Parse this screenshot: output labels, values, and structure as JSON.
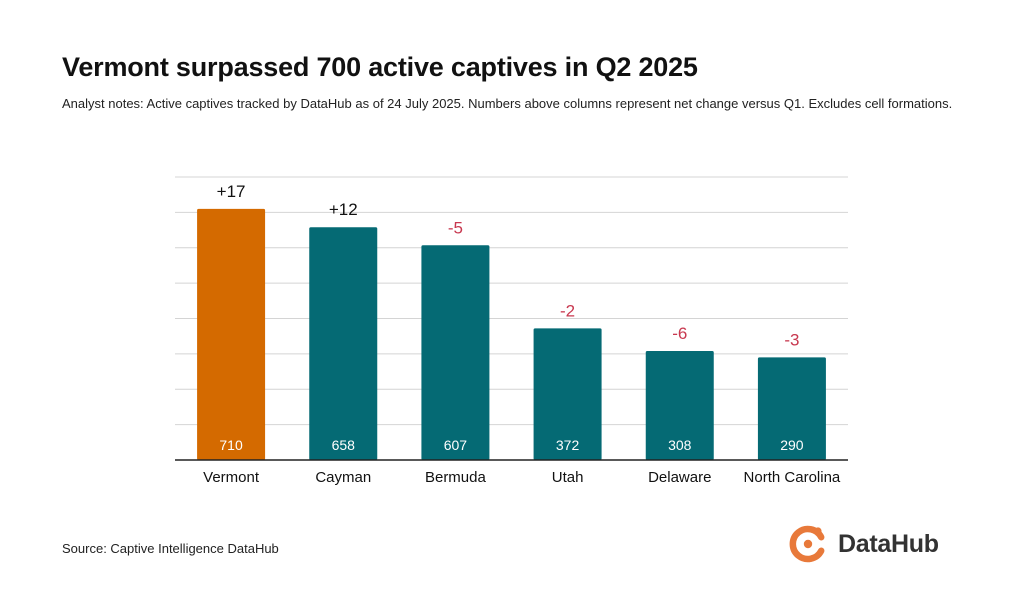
{
  "header": {
    "title": "Vermont surpassed 700 active captives in Q2 2025",
    "subtitle": "Analyst notes: Active captives tracked by DataHub as of 24 July 2025. Numbers above columns represent net change versus Q1. Excludes cell formations."
  },
  "footer": {
    "source": "Source: Captive Intelligence DataHub",
    "brand": "DataHub"
  },
  "colors": {
    "highlight_bar": "#d46a00",
    "bar": "#056a74",
    "positive_change": "#111111",
    "negative_change": "#c8384f",
    "value_label": "#ffffff",
    "gridline": "#d4d4d4",
    "axis": "#222222",
    "logo": "#e8793a"
  },
  "chart_data": {
    "type": "bar",
    "categories": [
      "Vermont",
      "Cayman",
      "Bermuda",
      "Utah",
      "Delaware",
      "North Carolina"
    ],
    "values": [
      710,
      658,
      607,
      372,
      308,
      290
    ],
    "value_labels": [
      "710",
      "658",
      "607",
      "372",
      "308",
      "290"
    ],
    "change_labels": [
      "+17",
      "+12",
      "-5",
      "-2",
      "-6",
      "-3"
    ],
    "highlight_index": 0,
    "ylim": [
      0,
      800
    ],
    "grid": true,
    "y_tick_labels_shown": false,
    "legend": "none"
  }
}
